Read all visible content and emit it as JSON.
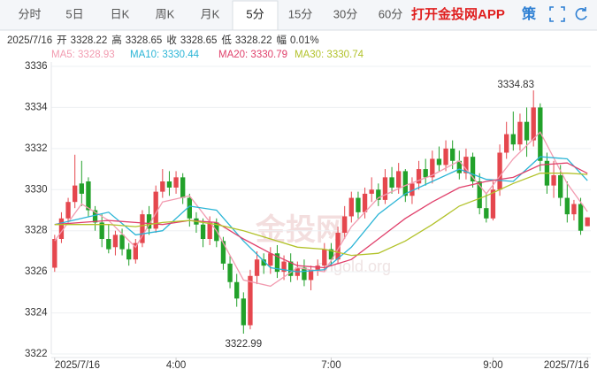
{
  "tabs": [
    "分时",
    "5日",
    "日K",
    "周K",
    "月K",
    "5分",
    "15分",
    "30分",
    "60分"
  ],
  "active_tab": 5,
  "app_link": "打开金投网APP",
  "tool": "策",
  "info": {
    "date": "2025/7/16",
    "items": [
      {
        "label": "开",
        "value": 3328.22
      },
      {
        "label": "高",
        "value": 3328.65
      },
      {
        "label": "收",
        "value": 3328.65
      },
      {
        "label": "低",
        "value": 3328.22
      },
      {
        "label": "幅",
        "value": "0.01%"
      }
    ]
  },
  "watermark": [
    "金投网",
    "cngold.org"
  ],
  "chart_data": {
    "type": "candlestick",
    "up_color": "#e5474e",
    "down_color": "#22a12a",
    "open": [
      3326.2,
      3327.6,
      3328.6,
      3329.4,
      3330.3,
      3330.4,
      3329.0,
      3328.4,
      3327.6,
      3327.2,
      3327.8,
      3327.1,
      3326.6,
      3327.4,
      3328.8,
      3328.1,
      3329.9,
      3330.4,
      3330.1,
      3330.6,
      3329.6,
      3328.6,
      3328.3,
      3327.6,
      3328.4,
      3327.5,
      3326.4,
      3325.5,
      3324.7,
      3323.4,
      3325.8,
      3326.6,
      3326.3,
      3326.9,
      3326.0,
      3326.5,
      3325.8,
      3326.2,
      3325.6,
      3326.1,
      3326.3,
      3327.1,
      3326.6,
      3327.9,
      3328.7,
      3329.6,
      3328.9,
      3329.8,
      3330.0,
      3329.5,
      3330.6,
      3330.1,
      3330.9,
      3329.7,
      3330.3,
      3331.0,
      3330.6,
      3331.5,
      3331.2,
      3332.0,
      3331.4,
      3330.8,
      3331.6,
      3330.4,
      3329.1,
      3328.6,
      3330.0,
      3331.8,
      3332.7,
      3332.2,
      3333.3,
      3332.4,
      3334.0,
      3331.4,
      3330.2,
      3330.7,
      3329.6,
      3328.8,
      3329.3,
      3328.22
    ],
    "high": [
      3327.8,
      3328.9,
      3329.6,
      3331.7,
      3331.4,
      3330.6,
      3329.2,
      3328.8,
      3328.3,
      3328.0,
      3328.1,
      3327.4,
      3327.6,
      3329.0,
      3329.2,
      3330.2,
      3331.0,
      3330.9,
      3330.9,
      3330.8,
      3329.8,
      3328.9,
      3328.6,
      3328.7,
      3328.6,
      3327.7,
      3326.8,
      3325.9,
      3325.0,
      3326.1,
      3327.0,
      3326.9,
      3327.2,
      3327.3,
      3326.8,
      3326.9,
      3326.5,
      3326.6,
      3326.3,
      3326.6,
      3327.4,
      3327.4,
      3328.2,
      3329.2,
      3329.9,
      3329.9,
      3330.1,
      3330.6,
      3330.3,
      3331.0,
      3331.1,
      3331.3,
      3331.0,
      3330.6,
      3331.4,
      3331.5,
      3331.9,
      3332.1,
      3332.4,
      3332.4,
      3331.9,
      3332.0,
      3331.8,
      3330.8,
      3329.8,
      3330.4,
      3332.2,
      3333.3,
      3333.8,
      3333.7,
      3334.0,
      3334.83,
      3334.2,
      3331.8,
      3331.4,
      3331.2,
      3330.4,
      3329.5,
      3329.6,
      3328.65
    ],
    "low": [
      3326.0,
      3327.4,
      3328.3,
      3329.1,
      3329.2,
      3328.7,
      3328.0,
      3327.2,
      3326.9,
      3326.8,
      3326.8,
      3326.3,
      3326.4,
      3327.2,
      3327.8,
      3327.9,
      3329.6,
      3329.7,
      3329.8,
      3329.3,
      3328.2,
      3327.9,
      3327.2,
      3327.3,
      3327.2,
      3326.1,
      3325.2,
      3324.3,
      3322.99,
      3323.2,
      3325.4,
      3325.9,
      3325.9,
      3325.7,
      3325.6,
      3325.5,
      3325.6,
      3325.3,
      3325.1,
      3325.8,
      3326.0,
      3326.3,
      3326.4,
      3327.6,
      3328.4,
      3328.6,
      3328.6,
      3329.4,
      3329.2,
      3329.3,
      3329.8,
      3329.8,
      3329.4,
      3329.3,
      3330.0,
      3330.2,
      3330.3,
      3330.9,
      3330.9,
      3331.0,
      3330.5,
      3330.5,
      3330.1,
      3328.8,
      3328.4,
      3328.5,
      3329.7,
      3331.5,
      3331.9,
      3331.9,
      3331.6,
      3332.1,
      3330.9,
      3329.8,
      3329.6,
      3329.2,
      3328.4,
      3328.5,
      3327.8,
      3328.22
    ],
    "close": [
      3327.6,
      3328.6,
      3329.4,
      3330.2,
      3329.8,
      3329.0,
      3328.4,
      3327.6,
      3327.1,
      3327.8,
      3327.1,
      3326.6,
      3327.4,
      3328.8,
      3328.1,
      3329.9,
      3330.4,
      3330.1,
      3330.6,
      3329.6,
      3328.6,
      3328.3,
      3327.6,
      3328.4,
      3327.5,
      3326.4,
      3325.5,
      3324.7,
      3323.4,
      3325.8,
      3326.6,
      3326.3,
      3326.9,
      3326.0,
      3326.5,
      3325.8,
      3326.2,
      3325.6,
      3326.1,
      3326.3,
      3327.1,
      3326.6,
      3327.9,
      3328.7,
      3329.6,
      3328.9,
      3329.8,
      3330.0,
      3329.5,
      3330.6,
      3330.1,
      3330.9,
      3329.7,
      3330.3,
      3331.0,
      3330.6,
      3331.5,
      3331.2,
      3332.0,
      3331.4,
      3330.8,
      3331.6,
      3330.4,
      3329.1,
      3328.6,
      3330.0,
      3331.8,
      3332.7,
      3332.2,
      3333.3,
      3332.4,
      3334.0,
      3331.4,
      3330.2,
      3330.7,
      3329.6,
      3328.8,
      3329.3,
      3328.0,
      3328.65
    ],
    "high_label": "3334.83",
    "low_label": "3322.99",
    "series": [
      {
        "name": "MA5: 3328.93",
        "color": "#f29bb0",
        "x": [
          0,
          4,
          8,
          12,
          16,
          20,
          24,
          28,
          32,
          36,
          40,
          44,
          48,
          52,
          56,
          60,
          64,
          68,
          72,
          76,
          79
        ],
        "values": [
          3327.5,
          3329.3,
          3328.5,
          3327.2,
          3329.4,
          3329.7,
          3328.0,
          3325.6,
          3325.3,
          3326.2,
          3326.0,
          3328.2,
          3329.6,
          3330.2,
          3330.7,
          3331.4,
          3329.8,
          3331.5,
          3332.8,
          3330.3,
          3328.93
        ]
      },
      {
        "name": "MA10: 3330.44",
        "color": "#2bb5d6",
        "x": [
          0,
          4,
          8,
          12,
          16,
          20,
          24,
          28,
          32,
          36,
          40,
          44,
          48,
          52,
          56,
          60,
          64,
          68,
          72,
          76,
          79
        ],
        "values": [
          3328.3,
          3328.6,
          3328.9,
          3327.8,
          3328.0,
          3329.2,
          3329.0,
          3327.5,
          3326.2,
          3326.0,
          3326.1,
          3327.2,
          3328.8,
          3329.8,
          3330.4,
          3331.0,
          3330.5,
          3330.4,
          3331.6,
          3331.5,
          3330.44
        ]
      },
      {
        "name": "MA20: 3330.79",
        "color": "#e0406b",
        "x": [
          0,
          4,
          8,
          12,
          16,
          20,
          24,
          28,
          32,
          36,
          40,
          44,
          48,
          52,
          56,
          60,
          64,
          68,
          72,
          76,
          79
        ],
        "values": [
          3328.3,
          3328.4,
          3328.5,
          3328.4,
          3328.3,
          3328.5,
          3328.4,
          3327.6,
          3326.9,
          3326.3,
          3326.2,
          3326.6,
          3327.6,
          3328.6,
          3329.4,
          3330.1,
          3330.4,
          3330.6,
          3331.2,
          3331.3,
          3330.79
        ]
      },
      {
        "name": "MA30: 3330.74",
        "color": "#b2c22a",
        "x": [
          0,
          4,
          8,
          12,
          16,
          20,
          24,
          28,
          32,
          36,
          40,
          44,
          48,
          52,
          56,
          60,
          64,
          68,
          72,
          76,
          79
        ],
        "values": [
          3328.3,
          3328.3,
          3328.3,
          3328.2,
          3328.4,
          3328.5,
          3328.3,
          3328.0,
          3327.6,
          3327.2,
          3327.1,
          3326.8,
          3326.9,
          3327.5,
          3328.3,
          3329.2,
          3329.7,
          3330.3,
          3330.8,
          3330.8,
          3330.74
        ]
      }
    ],
    "xlim": [
      -0.5,
      79.5
    ],
    "xticks": [
      {
        "value": 0,
        "label": "2025/7/16"
      },
      {
        "value": 18,
        "label": "4:00"
      },
      {
        "value": 41,
        "label": "7:00"
      },
      {
        "value": 65,
        "label": "9:00"
      },
      {
        "value": 79,
        "label": "2025/7/16"
      }
    ],
    "ylim": [
      3322,
      3336
    ],
    "yticks": [
      3322,
      3324,
      3326,
      3328,
      3330,
      3332,
      3334,
      3336
    ],
    "grid": true
  }
}
